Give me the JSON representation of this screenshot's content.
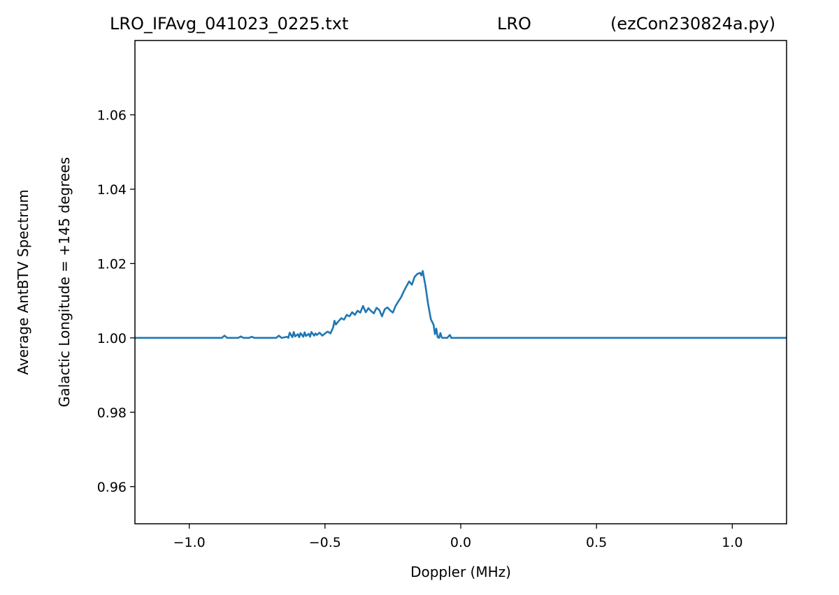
{
  "chart_data": {
    "type": "line",
    "title_parts": [
      "LRO_IFAvg_041023_0225.txt",
      "LRO",
      "(ezCon230824a.py)"
    ],
    "xlabel": "Doppler (MHz)",
    "ylabel_lines": [
      "Average AntBTV Spectrum",
      "Galactic Longitude = +145 degrees"
    ],
    "xlim": [
      -1.2,
      1.2
    ],
    "ylim": [
      0.95,
      1.08
    ],
    "x_ticks": [
      {
        "value": -1.0,
        "label": "−1.0"
      },
      {
        "value": -0.5,
        "label": "−0.5"
      },
      {
        "value": 0.0,
        "label": "0.0"
      },
      {
        "value": 0.5,
        "label": "0.5"
      },
      {
        "value": 1.0,
        "label": "1.0"
      }
    ],
    "y_ticks": [
      {
        "value": 0.96,
        "label": "0.96"
      },
      {
        "value": 0.98,
        "label": "0.98"
      },
      {
        "value": 1.0,
        "label": "1.00"
      },
      {
        "value": 1.02,
        "label": "1.02"
      },
      {
        "value": 1.04,
        "label": "1.04"
      },
      {
        "value": 1.06,
        "label": "1.06"
      }
    ],
    "grid": false,
    "series": [
      {
        "color": "#1f77b4",
        "x": [
          -1.2,
          -0.95,
          -0.9,
          -0.88,
          -0.87,
          -0.86,
          -0.84,
          -0.82,
          -0.81,
          -0.8,
          -0.78,
          -0.77,
          -0.76,
          -0.72,
          -0.68,
          -0.67,
          -0.66,
          -0.64,
          -0.635,
          -0.63,
          -0.62,
          -0.615,
          -0.61,
          -0.6,
          -0.595,
          -0.59,
          -0.58,
          -0.575,
          -0.57,
          -0.56,
          -0.555,
          -0.55,
          -0.54,
          -0.535,
          -0.53,
          -0.52,
          -0.51,
          -0.5,
          -0.49,
          -0.48,
          -0.47,
          -0.465,
          -0.46,
          -0.45,
          -0.44,
          -0.43,
          -0.42,
          -0.41,
          -0.4,
          -0.39,
          -0.38,
          -0.37,
          -0.36,
          -0.35,
          -0.34,
          -0.33,
          -0.32,
          -0.31,
          -0.3,
          -0.29,
          -0.28,
          -0.27,
          -0.26,
          -0.25,
          -0.24,
          -0.23,
          -0.22,
          -0.21,
          -0.2,
          -0.19,
          -0.18,
          -0.17,
          -0.16,
          -0.15,
          -0.145,
          -0.14,
          -0.13,
          -0.12,
          -0.11,
          -0.1,
          -0.095,
          -0.09,
          -0.085,
          -0.08,
          -0.075,
          -0.07,
          -0.065,
          -0.06,
          -0.055,
          -0.05,
          -0.045,
          -0.04,
          -0.035,
          -0.03,
          0.0,
          0.5,
          1.0,
          1.2
        ],
        "y": [
          1.0,
          1.0,
          1.0,
          1.0,
          1.0006,
          1.0,
          1.0,
          1.0,
          1.0004,
          1.0,
          1.0,
          1.0003,
          1.0,
          1.0,
          1.0,
          1.0006,
          1.0,
          1.0003,
          1.0,
          1.0014,
          1.0002,
          1.0016,
          1.0004,
          1.001,
          1.0002,
          1.0013,
          1.0003,
          1.0015,
          1.0005,
          1.0011,
          1.0003,
          1.0016,
          1.0006,
          1.0012,
          1.0008,
          1.0014,
          1.0006,
          1.0012,
          1.0017,
          1.0012,
          1.0028,
          1.0046,
          1.0036,
          1.0045,
          1.0053,
          1.0049,
          1.0062,
          1.0058,
          1.0069,
          1.0062,
          1.0073,
          1.0068,
          1.0086,
          1.0069,
          1.008,
          1.0072,
          1.0066,
          1.0081,
          1.0075,
          1.0058,
          1.0077,
          1.0082,
          1.0074,
          1.0068,
          1.0086,
          1.0098,
          1.0109,
          1.0125,
          1.0139,
          1.0152,
          1.0143,
          1.0164,
          1.0172,
          1.0175,
          1.0168,
          1.018,
          1.014,
          1.009,
          1.005,
          1.0035,
          1.001,
          1.0025,
          1.0002,
          1.0,
          1.0013,
          1.0001,
          1.0,
          1.0,
          1.0,
          1.0,
          1.0004,
          1.0008,
          1.0,
          1.0,
          1.0,
          1.0,
          1.0,
          1.0
        ]
      }
    ]
  }
}
